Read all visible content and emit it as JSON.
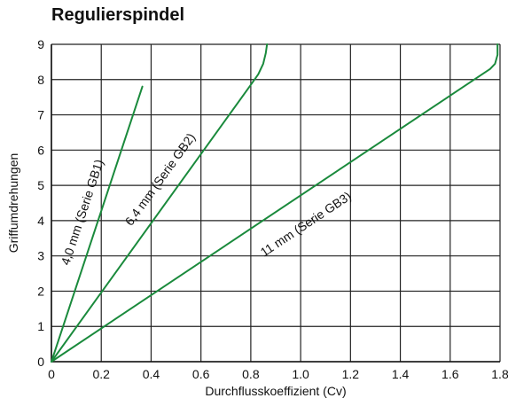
{
  "chart_data": {
    "type": "line",
    "title": "Regulierspindel",
    "xlabel": "Durchflusskoeffizient (Cv)",
    "ylabel": "Griffumdrehungen",
    "xlim": [
      0,
      1.8
    ],
    "ylim": [
      0,
      9
    ],
    "xticks": [
      "0",
      "0.2",
      "0.4",
      "0.6",
      "0.8",
      "1.0",
      "1.2",
      "1.4",
      "1.6",
      "1.8"
    ],
    "yticks": [
      "0",
      "1",
      "2",
      "3",
      "4",
      "5",
      "6",
      "7",
      "8",
      "9"
    ],
    "grid": true,
    "line_color": "#1a8a3c",
    "series": [
      {
        "name": "4,0 mm (Serie GB1)",
        "x": [
          0,
          0.365
        ],
        "y": [
          0,
          7.8
        ]
      },
      {
        "name": "6,4 mm (Serie GB2)",
        "x": [
          0,
          0.8,
          0.83,
          0.85,
          0.86,
          0.865
        ],
        "y": [
          0,
          7.85,
          8.15,
          8.45,
          8.75,
          9.0
        ]
      },
      {
        "name": "11 mm (Serie GB3)",
        "x": [
          0,
          1.76,
          1.78,
          1.79,
          1.79
        ],
        "y": [
          0,
          8.3,
          8.45,
          8.7,
          9.0
        ]
      }
    ]
  }
}
